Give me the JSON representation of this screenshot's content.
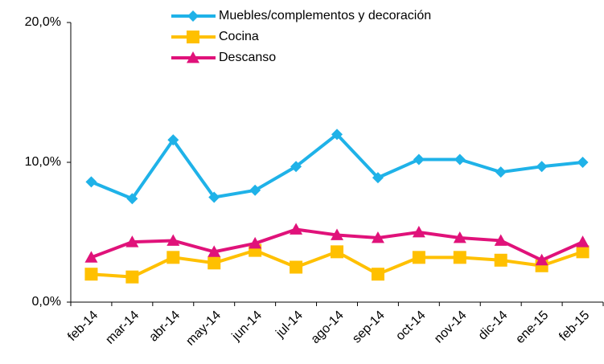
{
  "chart_data": {
    "type": "line",
    "categories": [
      "feb-14",
      "mar-14",
      "abr-14",
      "may-14",
      "jun-14",
      "jul-14",
      "ago-14",
      "sep-14",
      "oct-14",
      "nov-14",
      "dic-14",
      "ene-15",
      "feb-15"
    ],
    "series": [
      {
        "name": "Muebles/complementos y decoración",
        "color": "#1fb2e8",
        "marker": "diamond",
        "values": [
          8.6,
          7.4,
          11.6,
          7.5,
          8.0,
          9.7,
          12.0,
          8.9,
          10.2,
          10.2,
          9.3,
          9.7,
          10.0
        ]
      },
      {
        "name": "Cocina",
        "color": "#ffc000",
        "marker": "square",
        "values": [
          2.0,
          1.8,
          3.2,
          2.8,
          3.7,
          2.5,
          3.6,
          2.0,
          3.2,
          3.2,
          3.0,
          2.6,
          3.6
        ]
      },
      {
        "name": "Descanso",
        "color": "#e0127a",
        "marker": "triangle",
        "values": [
          3.2,
          4.3,
          4.4,
          3.6,
          4.2,
          5.2,
          4.8,
          4.6,
          5.0,
          4.6,
          4.4,
          3.0,
          4.3
        ]
      }
    ],
    "ylim": [
      0,
      20
    ],
    "yticks": [
      {
        "value": 0,
        "label": "0,0%"
      },
      {
        "value": 10,
        "label": "10,0%"
      },
      {
        "value": 20,
        "label": "20,0%"
      }
    ],
    "grid": false,
    "legend": "top"
  }
}
